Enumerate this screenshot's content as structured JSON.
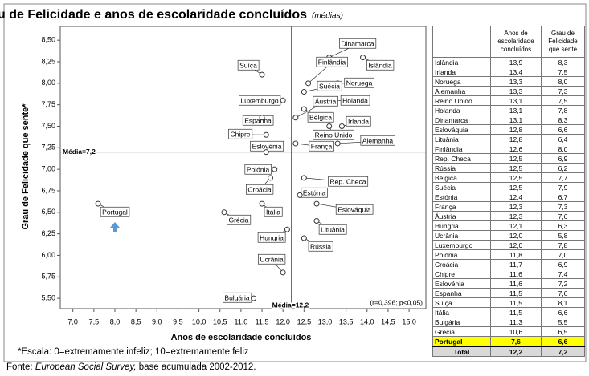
{
  "title": "Grau de Felicidade e anos de escolaridade concluídos",
  "subtitle": "(médias)",
  "chart_data": {
    "type": "scatter",
    "x_label": "Anos de escolaridade concluídos",
    "y_label": "Grau de Felicidade que sente*",
    "xlim": [
      6.7,
      15.4
    ],
    "ylim": [
      5.38,
      8.66
    ],
    "xticks": [
      {
        "value": 7.0,
        "label": "7,0"
      },
      {
        "value": 7.5,
        "label": "7,5"
      },
      {
        "value": 8.0,
        "label": "8,0"
      },
      {
        "value": 8.5,
        "label": "8,5"
      },
      {
        "value": 9.0,
        "label": "9,0"
      },
      {
        "value": 9.5,
        "label": "9,5"
      },
      {
        "value": 10.0,
        "label": "10,0"
      },
      {
        "value": 10.5,
        "label": "10,5"
      },
      {
        "value": 11.0,
        "label": "11,0"
      },
      {
        "value": 11.5,
        "label": "11,5"
      },
      {
        "value": 12.0,
        "label": "12,0"
      },
      {
        "value": 12.5,
        "label": "12,5"
      },
      {
        "value": 13.0,
        "label": "13,0"
      },
      {
        "value": 13.5,
        "label": "13,5"
      },
      {
        "value": 14.0,
        "label": "14,0"
      },
      {
        "value": 14.5,
        "label": "14,5"
      },
      {
        "value": 15.0,
        "label": "15,0"
      }
    ],
    "yticks": [
      {
        "value": 5.5,
        "label": "5,50"
      },
      {
        "value": 5.75,
        "label": "5,75"
      },
      {
        "value": 6.0,
        "label": "6,00"
      },
      {
        "value": 6.25,
        "label": "6,25"
      },
      {
        "value": 6.5,
        "label": "6,50"
      },
      {
        "value": 6.75,
        "label": "6,75"
      },
      {
        "value": 7.0,
        "label": "7,00"
      },
      {
        "value": 7.25,
        "label": "7,25"
      },
      {
        "value": 7.5,
        "label": "7,50"
      },
      {
        "value": 7.75,
        "label": "7,75"
      },
      {
        "value": 8.0,
        "label": "8,00"
      },
      {
        "value": 8.25,
        "label": "8,25"
      },
      {
        "value": 8.5,
        "label": "8,50"
      }
    ],
    "grid": false,
    "marker_color": "#ffffff",
    "reference_lines": [
      {
        "axis": "y",
        "value": 7.2,
        "label": "Média=7,2"
      },
      {
        "axis": "x",
        "value": 12.2,
        "label": "Média=12,2"
      }
    ],
    "annotation": "(r=0,396; p<0,05)",
    "points": [
      {
        "label": "Islândia",
        "x": 13.9,
        "y": 8.3
      },
      {
        "label": "Irlanda",
        "x": 13.4,
        "y": 7.5
      },
      {
        "label": "Noruega",
        "x": 13.3,
        "y": 8.0
      },
      {
        "label": "Alemanha",
        "x": 13.3,
        "y": 7.3
      },
      {
        "label": "Reino Unido",
        "x": 13.1,
        "y": 7.5
      },
      {
        "label": "Holanda",
        "x": 13.1,
        "y": 7.8
      },
      {
        "label": "Dinamarca",
        "x": 13.1,
        "y": 8.3
      },
      {
        "label": "Eslováquia",
        "x": 12.8,
        "y": 6.6
      },
      {
        "label": "Lituânia",
        "x": 12.8,
        "y": 6.4
      },
      {
        "label": "Finlândia",
        "x": 12.6,
        "y": 8.0
      },
      {
        "label": "Rep. Checa",
        "x": 12.5,
        "y": 6.9
      },
      {
        "label": "Rússia",
        "x": 12.5,
        "y": 6.2
      },
      {
        "label": "Bélgica",
        "x": 12.5,
        "y": 7.7
      },
      {
        "label": "Suécia",
        "x": 12.5,
        "y": 7.9
      },
      {
        "label": "Estónia",
        "x": 12.4,
        "y": 6.7
      },
      {
        "label": "França",
        "x": 12.3,
        "y": 7.3
      },
      {
        "label": "Áustria",
        "x": 12.3,
        "y": 7.6
      },
      {
        "label": "Hungria",
        "x": 12.1,
        "y": 6.3
      },
      {
        "label": "Ucrânia",
        "x": 12.0,
        "y": 5.8
      },
      {
        "label": "Luxemburgo",
        "x": 12.0,
        "y": 7.8
      },
      {
        "label": "Polónia",
        "x": 11.8,
        "y": 7.0
      },
      {
        "label": "Croácia",
        "x": 11.7,
        "y": 6.9
      },
      {
        "label": "Chipre",
        "x": 11.6,
        "y": 7.4
      },
      {
        "label": "Eslovénia",
        "x": 11.6,
        "y": 7.2
      },
      {
        "label": "Espanha",
        "x": 11.5,
        "y": 7.6
      },
      {
        "label": "Suíça",
        "x": 11.5,
        "y": 8.1
      },
      {
        "label": "Itália",
        "x": 11.5,
        "y": 6.6
      },
      {
        "label": "Bulgária",
        "x": 11.3,
        "y": 5.5
      },
      {
        "label": "Grécia",
        "x": 10.6,
        "y": 6.5
      },
      {
        "label": "Portugal",
        "x": 7.6,
        "y": 6.6
      }
    ]
  },
  "table": {
    "headers": [
      "",
      "Anos de escolaridade concluídos",
      "Grau de Felicidade que sente"
    ],
    "highlight_row": 29,
    "highlight_color": "#ffff00",
    "rows": [
      [
        "Islândia",
        "13,9",
        "8,3"
      ],
      [
        "Irlanda",
        "13,4",
        "7,5"
      ],
      [
        "Noruega",
        "13,3",
        "8,0"
      ],
      [
        "Alemanha",
        "13,3",
        "7,3"
      ],
      [
        "Reino Unido",
        "13,1",
        "7,5"
      ],
      [
        "Holanda",
        "13,1",
        "7,8"
      ],
      [
        "Dinamarca",
        "13,1",
        "8,3"
      ],
      [
        "Eslováquia",
        "12,8",
        "6,6"
      ],
      [
        "Lituânia",
        "12,8",
        "6,4"
      ],
      [
        "Finlândia",
        "12,6",
        "8,0"
      ],
      [
        "Rep. Checa",
        "12,5",
        "6,9"
      ],
      [
        "Rússia",
        "12,5",
        "6,2"
      ],
      [
        "Bélgica",
        "12,5",
        "7,7"
      ],
      [
        "Suécia",
        "12,5",
        "7,9"
      ],
      [
        "Estónia",
        "12,4",
        "6,7"
      ],
      [
        "França",
        "12,3",
        "7,3"
      ],
      [
        "Áustria",
        "12,3",
        "7,6"
      ],
      [
        "Hungria",
        "12,1",
        "6,3"
      ],
      [
        "Ucrânia",
        "12,0",
        "5,8"
      ],
      [
        "Luxemburgo",
        "12,0",
        "7,8"
      ],
      [
        "Polónia",
        "11,8",
        "7,0"
      ],
      [
        "Croácia",
        "11,7",
        "6,9"
      ],
      [
        "Chipre",
        "11,6",
        "7,4"
      ],
      [
        "Eslovénia",
        "11,6",
        "7,2"
      ],
      [
        "Espanha",
        "11,5",
        "7,6"
      ],
      [
        "Suíça",
        "11,5",
        "8,1"
      ],
      [
        "Itália",
        "11,5",
        "6,6"
      ],
      [
        "Bulgária",
        "11,3",
        "5,5"
      ],
      [
        "Grécia",
        "10,6",
        "6,5"
      ],
      [
        "Portugal",
        "7,6",
        "6,6"
      ]
    ],
    "total": [
      "Total",
      "12,2",
      "7,2"
    ]
  },
  "footnote": "*Escala: 0=extremamente infeliz; 10=extremamente feliz",
  "source": {
    "prefix": "Fonte:",
    "name": "European Social Survey,",
    "rest": "base acumulada 2002-2012."
  }
}
